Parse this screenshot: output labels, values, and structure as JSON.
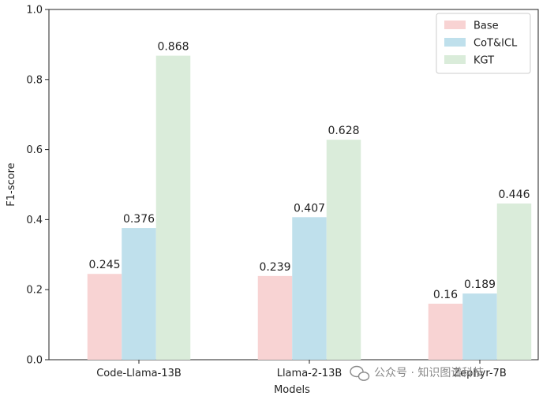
{
  "chart_data": {
    "type": "bar",
    "categories": [
      "Code-Llama-13B",
      "Llama-2-13B",
      "Zephyr-7B"
    ],
    "series": [
      {
        "name": "Base",
        "values": [
          0.245,
          0.239,
          0.16
        ],
        "labels": [
          "0.245",
          "0.239",
          "0.16"
        ],
        "color": "#f8d3d3"
      },
      {
        "name": "CoT&ICL",
        "values": [
          0.376,
          0.407,
          0.189
        ],
        "labels": [
          "0.376",
          "0.407",
          "0.189"
        ],
        "color": "#bfe0ec"
      },
      {
        "name": "KGT",
        "values": [
          0.868,
          0.628,
          0.446
        ],
        "labels": [
          "0.868",
          "0.628",
          "0.446"
        ],
        "color": "#daecda"
      }
    ],
    "xlabel": "Models",
    "ylabel": "F1-score",
    "ylim": [
      0,
      1.0
    ],
    "yticks": [
      0.0,
      0.2,
      0.4,
      0.6,
      0.8,
      1.0
    ],
    "ytick_labels": [
      "0.0",
      "0.2",
      "0.4",
      "0.6",
      "0.8",
      "1.0"
    ],
    "legend_position": "top-right",
    "grid": false
  },
  "watermark": {
    "text": "公众号 · 知识图谱科技",
    "icon": "wechat-icon"
  }
}
